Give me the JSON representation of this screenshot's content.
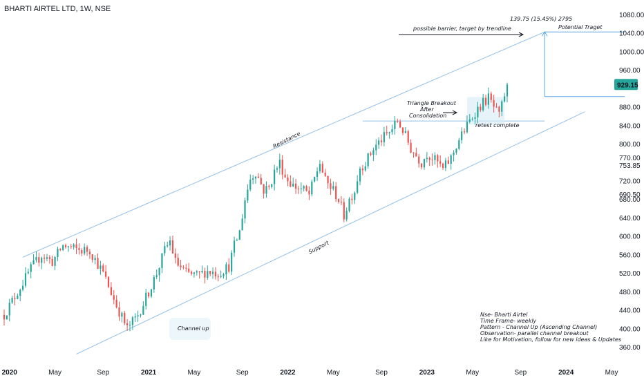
{
  "header": {
    "title": "BHARTI AIRTEL LTD, 1W, NSE"
  },
  "colors": {
    "up": "#26a69a",
    "down": "#ef5350",
    "channel": "#90bfe8",
    "measure": "#5aa6e6",
    "price_tag": "#26a69a",
    "price_text": "#ffffff"
  },
  "chart_data": {
    "type": "candlestick",
    "ylim": [
      340,
      1100
    ],
    "y_ticks": [
      "1080.00",
      "1040.00",
      "1000.00",
      "960.00",
      "929.15",
      "880.00",
      "840.00",
      "800.00",
      "770.00",
      "753.85",
      "720.00",
      "690.50",
      "680.00",
      "640.00",
      "600.00",
      "560.00",
      "520.00",
      "480.00",
      "440.00",
      "400.00",
      "360.00"
    ],
    "tick_values": [
      1080,
      1040,
      1000,
      960,
      880,
      840,
      800,
      770,
      720,
      680,
      640,
      600,
      560,
      520,
      480,
      440,
      400,
      360
    ],
    "x_ticks": [
      {
        "label": "2020",
        "t": 0
      },
      {
        "label": "May",
        "t": 17
      },
      {
        "label": "Sep",
        "t": 35
      },
      {
        "label": "2021",
        "t": 52
      },
      {
        "label": "May",
        "t": 69
      },
      {
        "label": "Sep",
        "t": 87
      },
      {
        "label": "2022",
        "t": 104
      },
      {
        "label": "May",
        "t": 121
      },
      {
        "label": "Sep",
        "t": 139
      },
      {
        "label": "2023",
        "t": 156
      },
      {
        "label": "May",
        "t": 173
      },
      {
        "label": "Sep",
        "t": 191
      },
      {
        "label": "2024",
        "t": 208
      },
      {
        "label": "May",
        "t": 225
      }
    ],
    "last_price": "929.15",
    "last_price_value": 929.15,
    "resistance_line": {
      "t": [
        5,
        200
      ],
      "y": [
        555,
        1043
      ]
    },
    "support_line": {
      "t": [
        25,
        215
      ],
      "y": [
        345,
        870
      ]
    },
    "horizontal_level": {
      "t": [
        132,
        200
      ],
      "y": 850
    },
    "measured_move": {
      "t": 200,
      "from": 903,
      "to": 1043,
      "label": "139.75 (15.45%) 2795"
    },
    "target_line": {
      "t": [
        200,
        230
      ],
      "y": 1043
    },
    "annotations": {
      "resistance": "Resistance",
      "support": "Support",
      "channel_up": "Channel up",
      "barrier": "possible barrier, target by trendline",
      "potential_target": "Potential Traget",
      "triangle_1": "Triangle Breakout",
      "triangle_2": "After",
      "triangle_3": "Consolidation",
      "retest": "retest complete"
    },
    "notes": [
      "Nse- Bharti Airtel",
      "Time Frame- weekly",
      "Pattern - Channel Up (Ascending Channel)",
      "Observation- parallel channel breakout",
      "Like for Motivation, follow for new ideas & Updates"
    ],
    "anchors": [
      [
        -2,
        430
      ],
      [
        0,
        450
      ],
      [
        4,
        490
      ],
      [
        8,
        530
      ],
      [
        12,
        560
      ],
      [
        16,
        545
      ],
      [
        20,
        580
      ],
      [
        26,
        570
      ],
      [
        30,
        570
      ],
      [
        35,
        520
      ],
      [
        40,
        450
      ],
      [
        44,
        400
      ],
      [
        48,
        430
      ],
      [
        52,
        480
      ],
      [
        55,
        520
      ],
      [
        58,
        570
      ],
      [
        60,
        590
      ],
      [
        62,
        545
      ],
      [
        66,
        520
      ],
      [
        70,
        515
      ],
      [
        74,
        525
      ],
      [
        78,
        520
      ],
      [
        82,
        535
      ],
      [
        84,
        580
      ],
      [
        86,
        610
      ],
      [
        88,
        680
      ],
      [
        90,
        725
      ],
      [
        92,
        740
      ],
      [
        95,
        700
      ],
      [
        97,
        705
      ],
      [
        99,
        740
      ],
      [
        101,
        760
      ],
      [
        103,
        730
      ],
      [
        106,
        710
      ],
      [
        110,
        700
      ],
      [
        112,
        690
      ],
      [
        116,
        760
      ],
      [
        118,
        720
      ],
      [
        121,
        700
      ],
      [
        123,
        680
      ],
      [
        125,
        645
      ],
      [
        127,
        680
      ],
      [
        129,
        700
      ],
      [
        131,
        750
      ],
      [
        133,
        760
      ],
      [
        136,
        790
      ],
      [
        139,
        810
      ],
      [
        142,
        825
      ],
      [
        145,
        850
      ],
      [
        147,
        830
      ],
      [
        150,
        790
      ],
      [
        154,
        760
      ],
      [
        156,
        780
      ],
      [
        158,
        770
      ],
      [
        160,
        760
      ],
      [
        162,
        745
      ],
      [
        165,
        770
      ],
      [
        168,
        810
      ],
      [
        171,
        840
      ],
      [
        174,
        870
      ],
      [
        177,
        890
      ],
      [
        179,
        900
      ],
      [
        181,
        880
      ],
      [
        183,
        860
      ],
      [
        186,
        929.15
      ]
    ]
  }
}
